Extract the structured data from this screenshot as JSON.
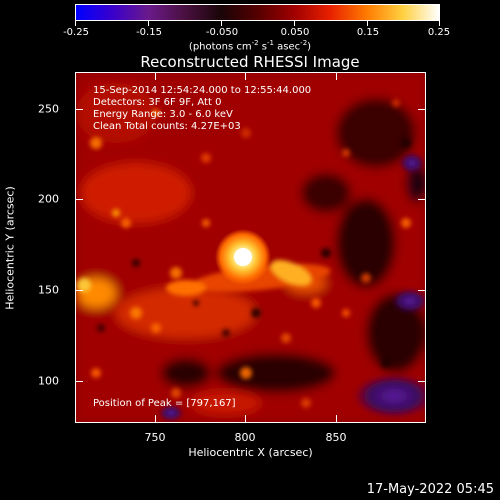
{
  "colorbar": {
    "colors": [
      "#0000ff",
      "#3a00cc",
      "#6a1a8a",
      "#4a1040",
      "#1a0508",
      "#550000",
      "#a00000",
      "#e82000",
      "#ff7a00",
      "#ffd040",
      "#ffffff"
    ],
    "ticks": [
      "-0.25",
      "-0.15",
      "-0.050",
      "0.050",
      "0.15",
      "0.25"
    ],
    "units_base": "(photons cm",
    "units_sup1": "-2",
    "units_mid1": " s",
    "units_sup2": "-1",
    "units_mid2": " asec",
    "units_sup3": "-2",
    "units_end": ")"
  },
  "title": "Reconstructed RHESSI Image",
  "info": {
    "line1": "15-Sep-2014 12:54:24.000 to 12:55:44.000",
    "line2": "Detectors: 3F 6F 9F, Att 0",
    "line3": "Energy Range: 3.0 - 6.0 keV",
    "line4": "Clean     Total counts: 4.27E+03",
    "peak": "Position of Peak = [797,167]"
  },
  "axes": {
    "xlabel": "Heliocentric X (arcsec)",
    "ylabel": "Heliocentric Y (arcsec)",
    "xticks": [
      "750",
      "800",
      "850"
    ],
    "yticks": [
      "250",
      "200",
      "150",
      "100"
    ]
  },
  "footer": {
    "date": "17-May-2022 05:45"
  }
}
